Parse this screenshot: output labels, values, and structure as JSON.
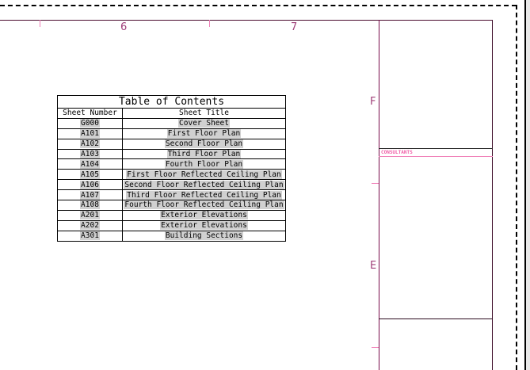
{
  "grid_labels": {
    "col_6": "6",
    "col_7": "7",
    "row_F": "F",
    "row_E": "E"
  },
  "titleblock": {
    "consultants_label": "CONSULTANTS"
  },
  "table": {
    "title": "Table of Contents",
    "headers": [
      "Sheet Number",
      "Sheet Title"
    ],
    "rows": [
      [
        "G000",
        "Cover Sheet"
      ],
      [
        "A101",
        "First Floor Plan"
      ],
      [
        "A102",
        "Second Floor Plan"
      ],
      [
        "A103",
        "Third Floor Plan"
      ],
      [
        "A104",
        "Fourth Floor Plan"
      ],
      [
        "A105",
        "First Floor Reflected Ceiling Plan"
      ],
      [
        "A106",
        "Second Floor Reflected Ceiling Plan"
      ],
      [
        "A107",
        "Third Floor Reflected Ceiling Plan"
      ],
      [
        "A108",
        "Fourth Floor Reflected Ceiling Plan"
      ],
      [
        "A201",
        "Exterior Elevations"
      ],
      [
        "A202",
        "Exterior Elevations"
      ],
      [
        "A301",
        "Building Sections"
      ]
    ]
  },
  "colors": {
    "border": "#4a0a2e",
    "grid_label": "#a0407a",
    "tick": "#f080b8",
    "highlight": "#d0d0d0"
  }
}
